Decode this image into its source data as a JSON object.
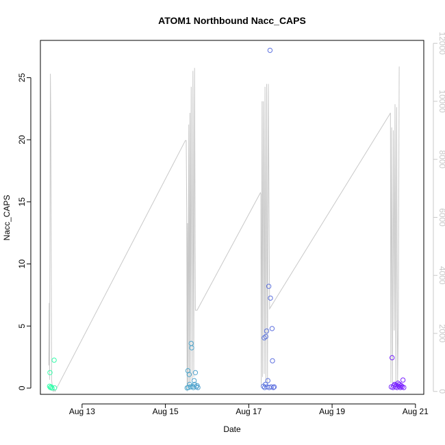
{
  "chart_data": {
    "type": "scatter",
    "title": "ATOM1 Northbound Nacc_CAPS",
    "xlabel": "Date",
    "ylabel": "Nacc_CAPS",
    "x_ticks": [
      "Aug 13",
      "Aug 15",
      "Aug 17",
      "Aug 19",
      "Aug 21"
    ],
    "x_tick_days": [
      13,
      15,
      17,
      19,
      21
    ],
    "xlim_days": [
      12.0,
      21.2
    ],
    "ylim": [
      -0.5,
      28
    ],
    "y_ticks": [
      "0",
      "5",
      "10",
      "15",
      "20",
      "25"
    ],
    "y2lim": [
      -100,
      12100
    ],
    "y2_ticks": [
      "0",
      "2000",
      "4000",
      "6000",
      "8000",
      "10000",
      "12000"
    ],
    "grid": false,
    "legend": "none",
    "colors": {
      "line": "#c8c8c8",
      "axis": "#000000",
      "right_axis": "#c8c8c8",
      "points_start": "#33ffaa",
      "points_end": "#7a1fff"
    },
    "points": [
      {
        "x": 12.22,
        "y": 0.15
      },
      {
        "x": 12.23,
        "y": 1.25
      },
      {
        "x": 12.24,
        "y": 0.05
      },
      {
        "x": 12.26,
        "y": 0.1
      },
      {
        "x": 12.28,
        "y": 0.0
      },
      {
        "x": 12.33,
        "y": 2.25
      },
      {
        "x": 12.34,
        "y": 0.02
      },
      {
        "x": 15.52,
        "y": 0.02
      },
      {
        "x": 15.54,
        "y": 1.4
      },
      {
        "x": 15.55,
        "y": 0.05
      },
      {
        "x": 15.57,
        "y": 1.1
      },
      {
        "x": 15.58,
        "y": 0.3
      },
      {
        "x": 15.6,
        "y": 0.1
      },
      {
        "x": 15.62,
        "y": 3.6
      },
      {
        "x": 15.63,
        "y": 3.25
      },
      {
        "x": 15.65,
        "y": 0.15
      },
      {
        "x": 15.67,
        "y": 0.05
      },
      {
        "x": 15.69,
        "y": 0.6
      },
      {
        "x": 15.7,
        "y": 0.3
      },
      {
        "x": 15.72,
        "y": 1.25
      },
      {
        "x": 15.74,
        "y": 0.1
      },
      {
        "x": 15.76,
        "y": 0.2
      },
      {
        "x": 15.78,
        "y": 0.05
      },
      {
        "x": 17.35,
        "y": 0.15
      },
      {
        "x": 17.37,
        "y": 4.05
      },
      {
        "x": 17.38,
        "y": 0.05
      },
      {
        "x": 17.4,
        "y": 0.3
      },
      {
        "x": 17.41,
        "y": 4.15
      },
      {
        "x": 17.43,
        "y": 4.6
      },
      {
        "x": 17.44,
        "y": 0.1
      },
      {
        "x": 17.46,
        "y": 0.6
      },
      {
        "x": 17.48,
        "y": 8.2
      },
      {
        "x": 17.49,
        "y": 0.05
      },
      {
        "x": 17.51,
        "y": 27.2
      },
      {
        "x": 17.52,
        "y": 7.25
      },
      {
        "x": 17.54,
        "y": 0.1
      },
      {
        "x": 17.56,
        "y": 4.8
      },
      {
        "x": 17.57,
        "y": 2.2
      },
      {
        "x": 17.59,
        "y": 0.05
      },
      {
        "x": 17.61,
        "y": 0.1
      },
      {
        "x": 20.42,
        "y": 0.1
      },
      {
        "x": 20.44,
        "y": 2.45
      },
      {
        "x": 20.46,
        "y": 0.05
      },
      {
        "x": 20.48,
        "y": 0.2
      },
      {
        "x": 20.5,
        "y": 0.3
      },
      {
        "x": 20.52,
        "y": 0.1
      },
      {
        "x": 20.54,
        "y": 0.25
      },
      {
        "x": 20.56,
        "y": 0.05
      },
      {
        "x": 20.58,
        "y": 0.4
      },
      {
        "x": 20.6,
        "y": 0.15
      },
      {
        "x": 20.62,
        "y": 0.3
      },
      {
        "x": 20.64,
        "y": 0.05
      },
      {
        "x": 20.66,
        "y": 0.2
      },
      {
        "x": 20.68,
        "y": 0.1
      },
      {
        "x": 20.7,
        "y": 0.65
      },
      {
        "x": 20.72,
        "y": 0.05
      }
    ],
    "line_series": [
      [
        12.2,
        900
      ],
      [
        12.21,
        3050
      ],
      [
        12.22,
        400
      ],
      [
        12.24,
        10950
      ],
      [
        12.25,
        9400
      ],
      [
        12.27,
        400
      ],
      [
        12.29,
        100
      ],
      [
        12.31,
        0
      ],
      [
        12.33,
        100
      ],
      [
        12.35,
        0
      ],
      [
        15.48,
        8650
      ],
      [
        15.5,
        8650
      ],
      [
        15.51,
        6300
      ],
      [
        15.52,
        0
      ],
      [
        15.53,
        5800
      ],
      [
        15.54,
        200
      ],
      [
        15.56,
        9200
      ],
      [
        15.57,
        200
      ],
      [
        15.59,
        9600
      ],
      [
        15.6,
        300
      ],
      [
        15.62,
        10500
      ],
      [
        15.64,
        400
      ],
      [
        15.66,
        11050
      ],
      [
        15.68,
        500
      ],
      [
        15.7,
        11150
      ],
      [
        15.72,
        2800
      ],
      [
        15.76,
        2800
      ],
      [
        17.28,
        6850
      ],
      [
        17.29,
        6800
      ],
      [
        17.3,
        200
      ],
      [
        17.32,
        10000
      ],
      [
        17.33,
        500
      ],
      [
        17.35,
        10000
      ],
      [
        17.37,
        600
      ],
      [
        17.39,
        10500
      ],
      [
        17.41,
        300
      ],
      [
        17.43,
        10600
      ],
      [
        17.45,
        300
      ],
      [
        17.47,
        10600
      ],
      [
        17.5,
        2850
      ],
      [
        20.38,
        9550
      ],
      [
        20.4,
        9600
      ],
      [
        20.41,
        300
      ],
      [
        20.43,
        9100
      ],
      [
        20.45,
        200
      ],
      [
        20.47,
        9000
      ],
      [
        20.49,
        2100
      ],
      [
        20.51,
        9900
      ],
      [
        20.53,
        200
      ],
      [
        20.55,
        9800
      ],
      [
        20.57,
        300
      ],
      [
        20.59,
        2400
      ],
      [
        20.61,
        11200
      ]
    ]
  }
}
